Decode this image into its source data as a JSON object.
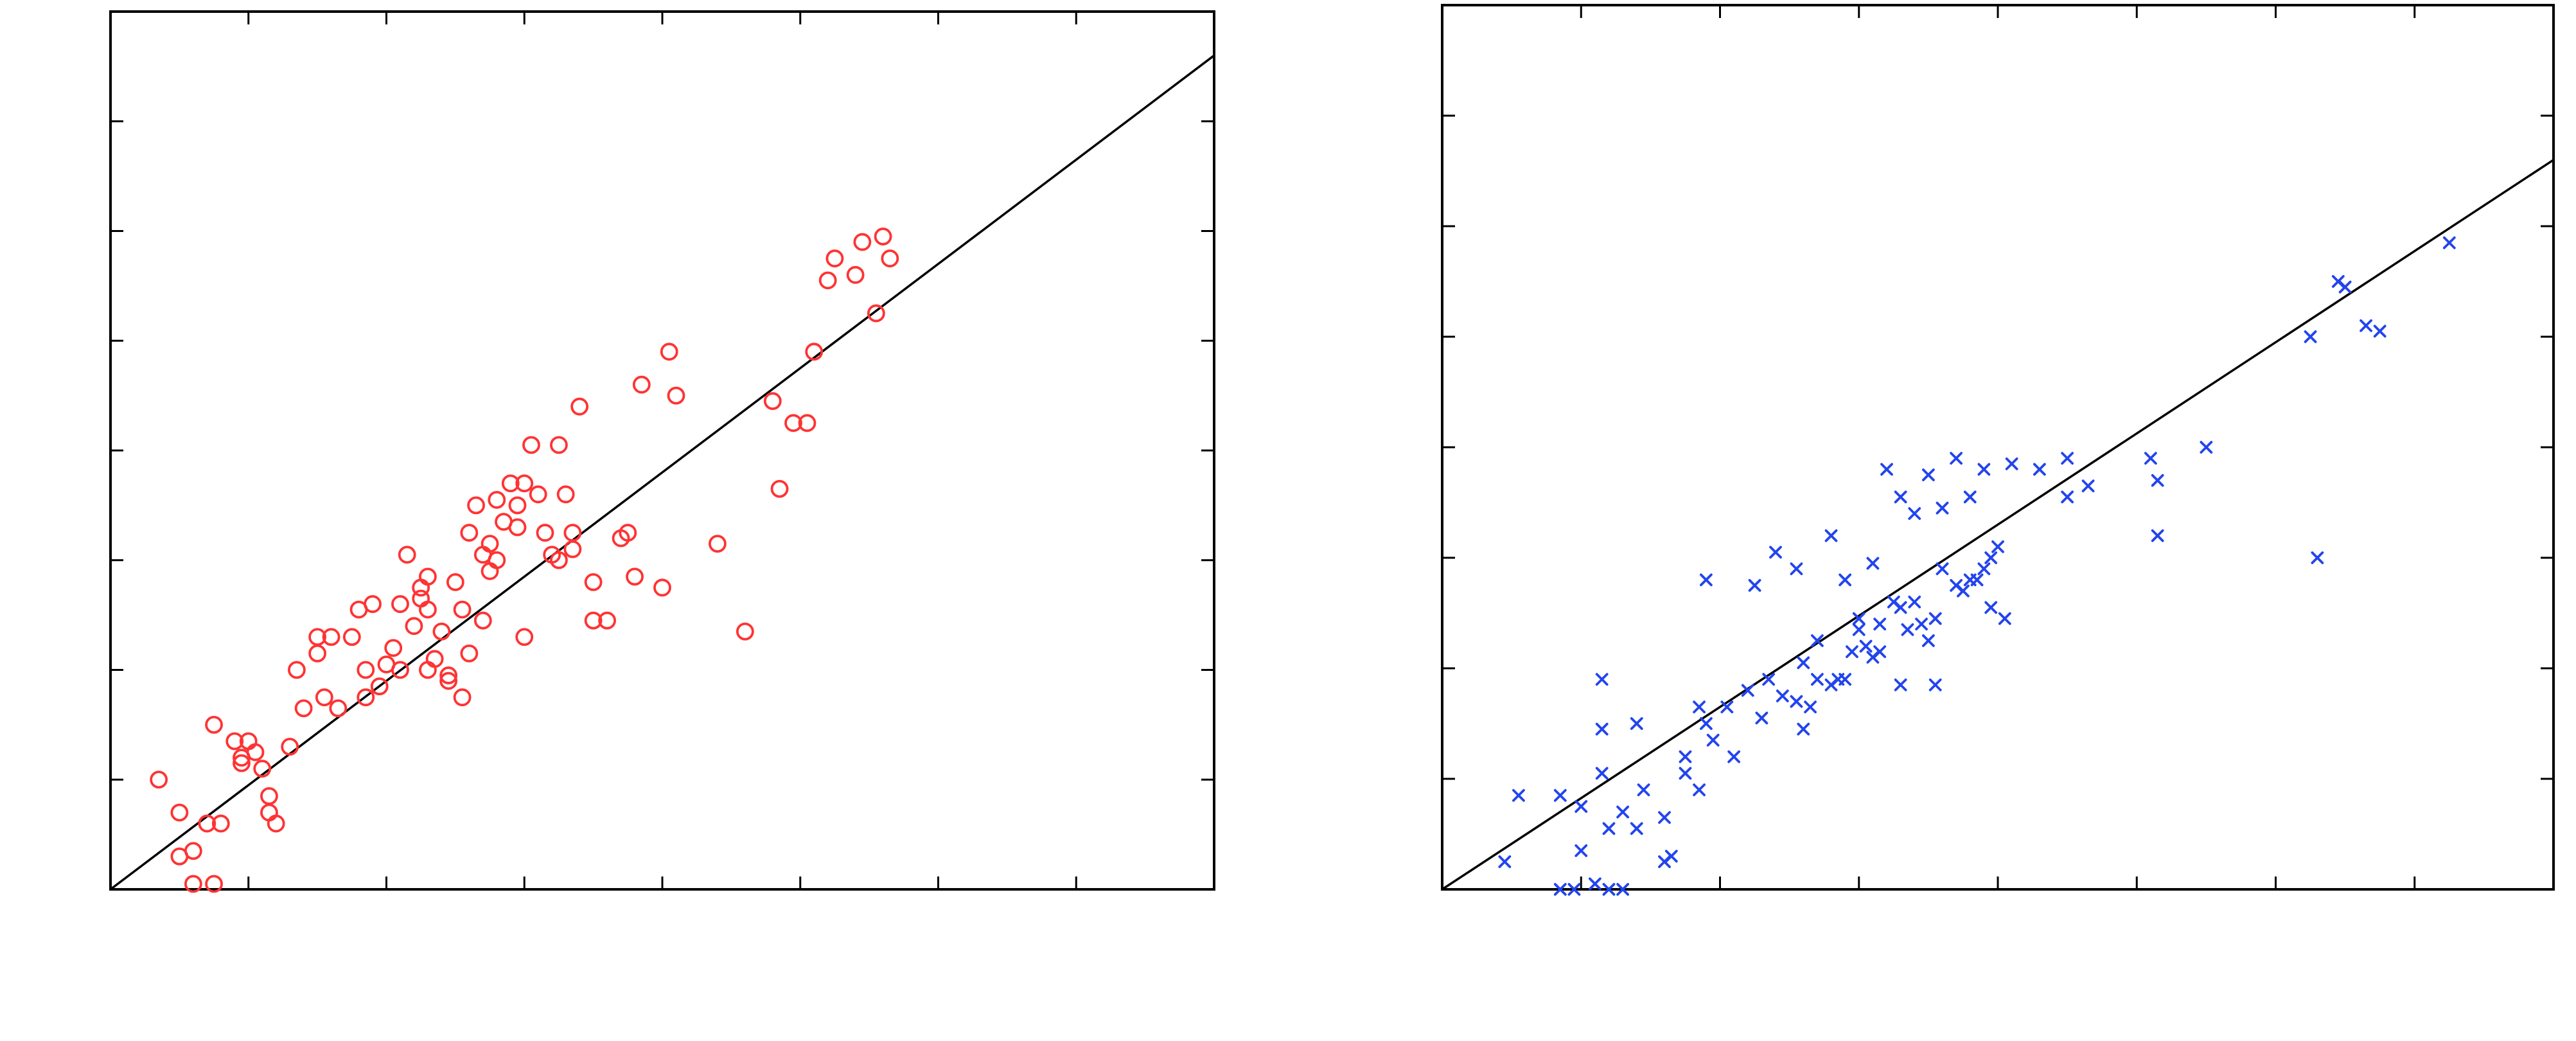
{
  "chart_data": [
    {
      "type": "scatter",
      "title": "",
      "xlabel": "",
      "ylabel": "",
      "xlim": [
        0,
        8
      ],
      "ylim": [
        0,
        8
      ],
      "x_ticks": [
        1,
        2,
        3,
        4,
        5,
        6,
        7
      ],
      "y_ticks": [
        1,
        2,
        3,
        4,
        5,
        6,
        7
      ],
      "grid": false,
      "legend": "none",
      "marker": "circle",
      "color": "#ff3333",
      "fit_line": {
        "x": [
          0,
          8
        ],
        "y": [
          0,
          7.6
        ]
      },
      "series": [
        {
          "x": [
            0.35,
            0.5,
            0.5,
            0.6,
            0.7,
            0.8,
            0.6,
            0.75,
            0.95,
            1.05,
            1.1,
            1.15,
            1.2,
            1.0,
            0.95,
            1.3,
            1.4,
            1.55,
            1.6,
            1.5,
            1.65,
            1.75,
            1.8,
            1.85,
            1.95,
            2.0,
            2.05,
            2.1,
            2.15,
            2.2,
            2.25,
            2.3,
            2.35,
            2.4,
            2.45,
            2.5,
            2.55,
            2.6,
            2.65,
            2.7,
            2.75,
            2.8,
            2.85,
            2.9,
            2.95,
            3.0,
            3.05,
            3.1,
            3.15,
            3.2,
            3.25,
            3.3,
            3.35,
            3.4,
            3.5,
            3.6,
            3.7,
            3.8,
            3.85,
            3.5,
            2.25,
            2.3,
            2.45,
            2.6,
            2.7,
            2.95,
            3.25,
            4.0,
            4.05,
            4.4,
            4.6,
            4.8,
            4.85,
            4.95,
            5.1,
            5.2,
            5.25,
            5.4,
            5.45,
            5.55,
            5.6,
            5.65,
            5.05,
            4.1,
            1.5,
            2.55,
            2.3,
            2.1,
            3.0,
            2.75,
            1.9,
            3.35,
            3.75,
            2.8,
            1.85,
            1.35,
            0.75,
            0.9,
            1.15
          ],
          "y": [
            1.0,
            0.7,
            0.3,
            0.35,
            0.6,
            0.6,
            0.05,
            0.05,
            1.2,
            1.25,
            1.1,
            0.85,
            0.6,
            1.35,
            1.15,
            1.3,
            1.65,
            1.75,
            2.3,
            2.3,
            1.65,
            2.3,
            2.55,
            2.0,
            1.85,
            2.05,
            2.2,
            2.6,
            3.05,
            2.4,
            2.75,
            2.55,
            2.1,
            2.35,
            1.9,
            2.8,
            2.55,
            3.25,
            3.5,
            3.05,
            3.15,
            3.0,
            3.35,
            3.7,
            3.5,
            3.7,
            4.05,
            3.6,
            3.25,
            3.05,
            3.0,
            3.6,
            3.1,
            4.4,
            2.45,
            2.45,
            3.2,
            2.85,
            4.6,
            2.8,
            2.65,
            2.85,
            1.95,
            2.15,
            2.45,
            3.3,
            4.05,
            2.75,
            4.9,
            3.15,
            2.35,
            4.45,
            3.65,
            4.25,
            4.9,
            5.55,
            5.75,
            5.6,
            5.9,
            5.25,
            5.95,
            5.75,
            4.25,
            4.5,
            2.15,
            1.75,
            2.0,
            2.0,
            2.3,
            2.9,
            2.6,
            3.25,
            3.25,
            3.55,
            1.75,
            2.0,
            1.5,
            1.35,
            0.7
          ]
        }
      ]
    },
    {
      "type": "scatter",
      "title": "",
      "xlabel": "",
      "ylabel": "",
      "xlim": [
        0,
        8
      ],
      "ylim": [
        0,
        8
      ],
      "x_ticks": [
        1,
        2,
        3,
        4,
        5,
        6,
        7
      ],
      "y_ticks": [
        1,
        2,
        3,
        4,
        5,
        6,
        7
      ],
      "grid": false,
      "legend": "none",
      "marker": "x",
      "color": "#2244ee",
      "fit_line": {
        "x": [
          0,
          8
        ],
        "y": [
          0,
          6.6
        ]
      },
      "series": [
        {
          "x": [
            0.45,
            0.55,
            0.85,
            1.0,
            1.15,
            1.15,
            1.15,
            1.2,
            1.3,
            1.4,
            1.45,
            1.6,
            1.65,
            1.75,
            1.85,
            1.85,
            1.9,
            1.95,
            2.05,
            2.1,
            2.2,
            2.3,
            2.35,
            2.45,
            2.55,
            2.6,
            2.65,
            2.7,
            2.8,
            2.85,
            2.9,
            2.95,
            3.05,
            3.1,
            3.15,
            3.25,
            3.3,
            3.35,
            3.4,
            3.5,
            3.55,
            3.6,
            3.7,
            3.75,
            3.85,
            3.9,
            3.95,
            4.0,
            4.05,
            2.25,
            2.4,
            2.55,
            2.7,
            2.8,
            2.9,
            3.0,
            3.1,
            3.2,
            3.3,
            3.4,
            3.5,
            3.6,
            3.7,
            3.8,
            3.9,
            4.1,
            4.3,
            4.5,
            4.5,
            4.65,
            5.1,
            5.15,
            5.5,
            5.15,
            6.25,
            6.45,
            6.5,
            6.65,
            6.75,
            7.25,
            6.3,
            3.3,
            3.15,
            3.45,
            3.95,
            1.4,
            1.9,
            2.6,
            3.0,
            3.55,
            3.8,
            1.0,
            1.2,
            1.75,
            1.1,
            0.95,
            1.6,
            1.3,
            0.85
          ],
          "y": [
            0.25,
            0.85,
            0.85,
            0.75,
            1.05,
            1.45,
            1.9,
            0.55,
            0.7,
            0.55,
            0.9,
            0.65,
            0.3,
            1.2,
            1.65,
            0.9,
            1.5,
            1.35,
            1.65,
            1.2,
            1.8,
            1.55,
            1.9,
            1.75,
            1.7,
            1.45,
            1.65,
            1.9,
            1.85,
            1.9,
            1.9,
            2.15,
            2.2,
            2.1,
            2.4,
            2.6,
            2.55,
            2.35,
            2.6,
            2.25,
            2.45,
            2.9,
            2.75,
            2.7,
            2.8,
            2.9,
            3.0,
            3.1,
            2.45,
            2.75,
            3.05,
            2.9,
            2.25,
            3.2,
            2.8,
            2.45,
            2.95,
            3.8,
            3.55,
            3.4,
            3.75,
            3.45,
            3.9,
            3.55,
            3.8,
            3.85,
            3.8,
            3.9,
            3.55,
            3.65,
            3.9,
            3.7,
            4.0,
            3.2,
            5.0,
            5.5,
            5.45,
            5.1,
            5.05,
            5.85,
            3.0,
            1.85,
            2.15,
            2.4,
            2.55,
            1.5,
            2.8,
            2.05,
            2.35,
            1.85,
            2.8,
            0.35,
            0.0,
            1.05,
            0.05,
            0.0,
            0.25,
            0.0,
            0.0
          ]
        }
      ]
    }
  ]
}
